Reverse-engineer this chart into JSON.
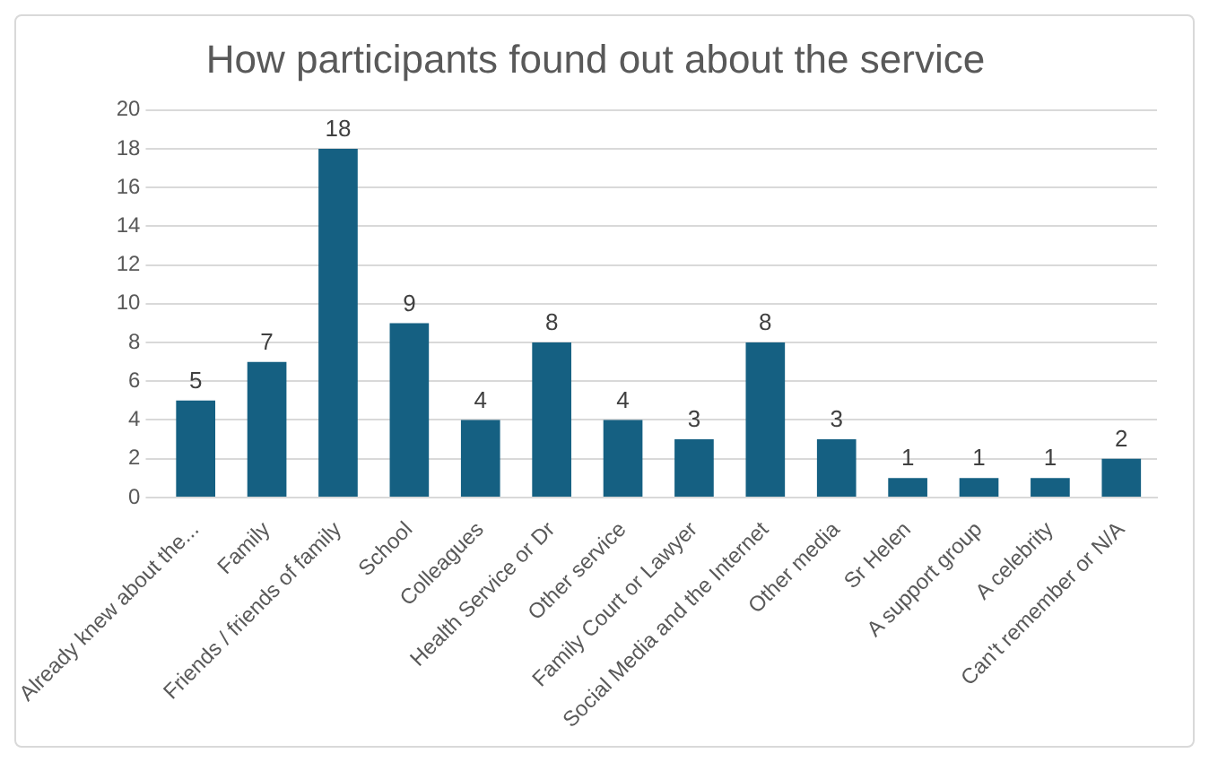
{
  "chart_data": {
    "type": "bar",
    "title": "How participants found out about the service",
    "categories": [
      "Already knew about the...",
      "Family",
      "Friends / friends of family",
      "School",
      "Colleagues",
      "Health Service or Dr",
      "Other service",
      "Family Court or Lawyer",
      "Social Media and the Internet",
      "Other media",
      "Sr Helen",
      "A support group",
      "A celebrity",
      "Can't remember or N/A"
    ],
    "values": [
      5,
      7,
      18,
      9,
      4,
      8,
      4,
      3,
      8,
      3,
      1,
      1,
      1,
      2
    ],
    "color": "#156082",
    "ylim": [
      0,
      20
    ],
    "yticks": [
      0,
      2,
      4,
      6,
      8,
      10,
      12,
      14,
      16,
      18,
      20
    ],
    "grid": "y",
    "legend": false,
    "data_labels": true
  }
}
